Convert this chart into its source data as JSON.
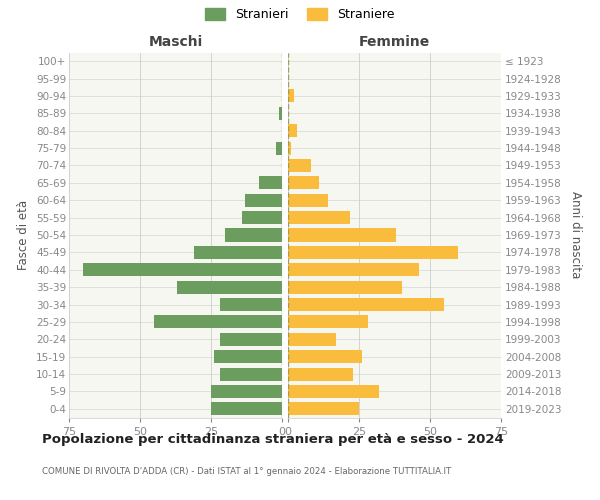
{
  "age_groups": [
    "100+",
    "95-99",
    "90-94",
    "85-89",
    "80-84",
    "75-79",
    "70-74",
    "65-69",
    "60-64",
    "55-59",
    "50-54",
    "45-49",
    "40-44",
    "35-39",
    "30-34",
    "25-29",
    "20-24",
    "15-19",
    "10-14",
    "5-9",
    "0-4"
  ],
  "birth_years": [
    "≤ 1923",
    "1924-1928",
    "1929-1933",
    "1934-1938",
    "1939-1943",
    "1944-1948",
    "1949-1953",
    "1954-1958",
    "1959-1963",
    "1964-1968",
    "1969-1973",
    "1974-1978",
    "1979-1983",
    "1984-1988",
    "1989-1993",
    "1994-1998",
    "1999-2003",
    "2004-2008",
    "2009-2013",
    "2014-2018",
    "2019-2023"
  ],
  "males": [
    0,
    0,
    0,
    1,
    0,
    2,
    0,
    8,
    13,
    14,
    20,
    31,
    70,
    37,
    22,
    45,
    22,
    24,
    22,
    25,
    25
  ],
  "females": [
    0,
    0,
    2,
    0,
    3,
    1,
    8,
    11,
    14,
    22,
    38,
    60,
    46,
    40,
    55,
    28,
    17,
    26,
    23,
    32,
    25
  ],
  "male_color": "#6b9e5e",
  "female_color": "#f9bc3c",
  "male_label": "Stranieri",
  "female_label": "Straniere",
  "title_maschi": "Maschi",
  "title_femmine": "Femmine",
  "ylabel_left": "Fasce di età",
  "ylabel_right": "Anni di nascita",
  "xlim": 75,
  "main_title": "Popolazione per cittadinanza straniera per età e sesso - 2024",
  "subtitle": "COMUNE DI RIVOLTA D'ADDA (CR) - Dati ISTAT al 1° gennaio 2024 - Elaborazione TUTTITALIA.IT",
  "bg_color": "#ffffff",
  "plot_bg_color": "#f7f7f2",
  "grid_color": "#cccccc",
  "tick_color": "#888888"
}
